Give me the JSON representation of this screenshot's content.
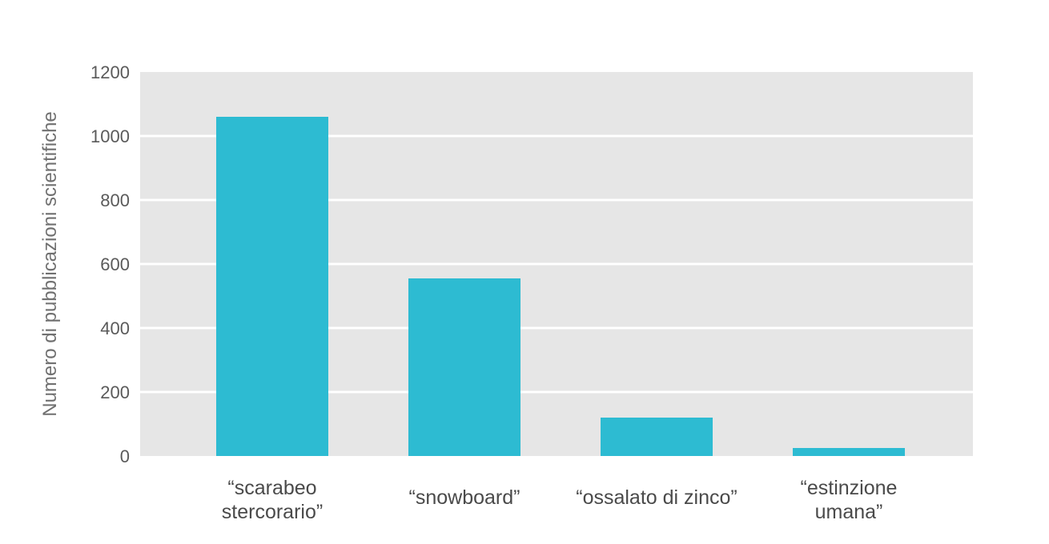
{
  "chart_data": {
    "type": "bar",
    "title": "",
    "xlabel": "",
    "ylabel": "Numero di pubblicazioni scientifiche",
    "ylim": [
      0,
      1200
    ],
    "yticks": [
      0,
      200,
      400,
      600,
      800,
      1000,
      1200
    ],
    "grid": true,
    "categories": [
      [
        "“scarabeo",
        "stercorario”"
      ],
      [
        "“snowboard”"
      ],
      [
        "“ossalato di zinco”"
      ],
      [
        "“estinzione",
        "umana”"
      ]
    ],
    "values": [
      1060,
      555,
      120,
      25
    ],
    "colors": {
      "bar": "#2dbbd2",
      "plot_background": "#e6e6e6",
      "grid": "#ffffff"
    }
  }
}
